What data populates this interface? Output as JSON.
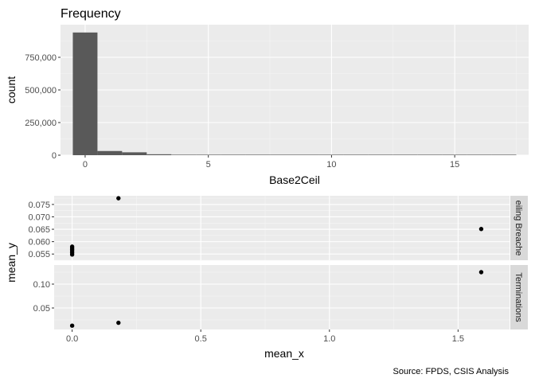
{
  "chart_data": [
    {
      "type": "bar",
      "title": "Frequency",
      "xlabel": "Base2Ceil",
      "ylabel": "count",
      "xlim": [
        -1.0,
        18.0
      ],
      "ylim": [
        0,
        1000000
      ],
      "x_ticks": [
        0,
        5,
        10,
        15
      ],
      "x_tick_labels": [
        "0",
        "5",
        "10",
        "15"
      ],
      "y_ticks": [
        0,
        250000,
        500000,
        750000
      ],
      "y_tick_labels": [
        "0",
        "250,000",
        "500,000",
        "750,000"
      ],
      "bin_width": 1,
      "bins": [
        {
          "x": 0,
          "count": 940000
        },
        {
          "x": 1,
          "count": 32000
        },
        {
          "x": 2,
          "count": 22000
        },
        {
          "x": 3,
          "count": 7000
        },
        {
          "x": 4,
          "count": 3000
        },
        {
          "x": 5,
          "count": 600
        },
        {
          "x": 6,
          "count": 300
        },
        {
          "x": 7,
          "count": 200
        },
        {
          "x": 8,
          "count": 100
        },
        {
          "x": 9,
          "count": 80
        },
        {
          "x": 10,
          "count": 60
        },
        {
          "x": 11,
          "count": 40
        },
        {
          "x": 12,
          "count": 30
        },
        {
          "x": 13,
          "count": 20
        },
        {
          "x": 14,
          "count": 10
        },
        {
          "x": 15,
          "count": 8
        },
        {
          "x": 16,
          "count": 5
        },
        {
          "x": 17,
          "count": 2
        }
      ],
      "bar_color": "#595959",
      "panel_background": "#ebebeb",
      "grid": true
    },
    {
      "type": "scatter",
      "xlabel": "mean_x",
      "ylabel": "mean_y",
      "xlim": [
        -0.07,
        1.7
      ],
      "x_ticks": [
        0.0,
        0.5,
        1.0,
        1.5
      ],
      "x_tick_labels": [
        "0.0",
        "0.5",
        "1.0",
        "1.5"
      ],
      "point_color": "#000000",
      "facets": [
        {
          "strip_label": "eiling Breache",
          "ylim": [
            0.0525,
            0.0785
          ],
          "y_ticks": [
            0.055,
            0.06,
            0.065,
            0.07,
            0.075
          ],
          "y_tick_labels": [
            "0.055",
            "0.060",
            "0.065",
            "0.070",
            "0.075"
          ],
          "points": [
            {
              "x": 0.0,
              "y": 0.0548
            },
            {
              "x": 0.0,
              "y": 0.0555
            },
            {
              "x": 0.0,
              "y": 0.0562
            },
            {
              "x": 0.0,
              "y": 0.0568
            },
            {
              "x": 0.0,
              "y": 0.0574
            },
            {
              "x": 0.0,
              "y": 0.058
            },
            {
              "x": 0.18,
              "y": 0.0775
            },
            {
              "x": 1.59,
              "y": 0.0651
            }
          ]
        },
        {
          "strip_label": "Terminations",
          "ylim": [
            0.005,
            0.14
          ],
          "y_ticks": [
            0.05,
            0.1
          ],
          "y_tick_labels": [
            "0.05",
            "0.10"
          ],
          "points": [
            {
              "x": 0.0,
              "y": 0.013
            },
            {
              "x": 0.18,
              "y": 0.019
            },
            {
              "x": 1.59,
              "y": 0.125
            }
          ]
        }
      ]
    }
  ],
  "caption": "Source: FPDS, CSIS Analysis"
}
